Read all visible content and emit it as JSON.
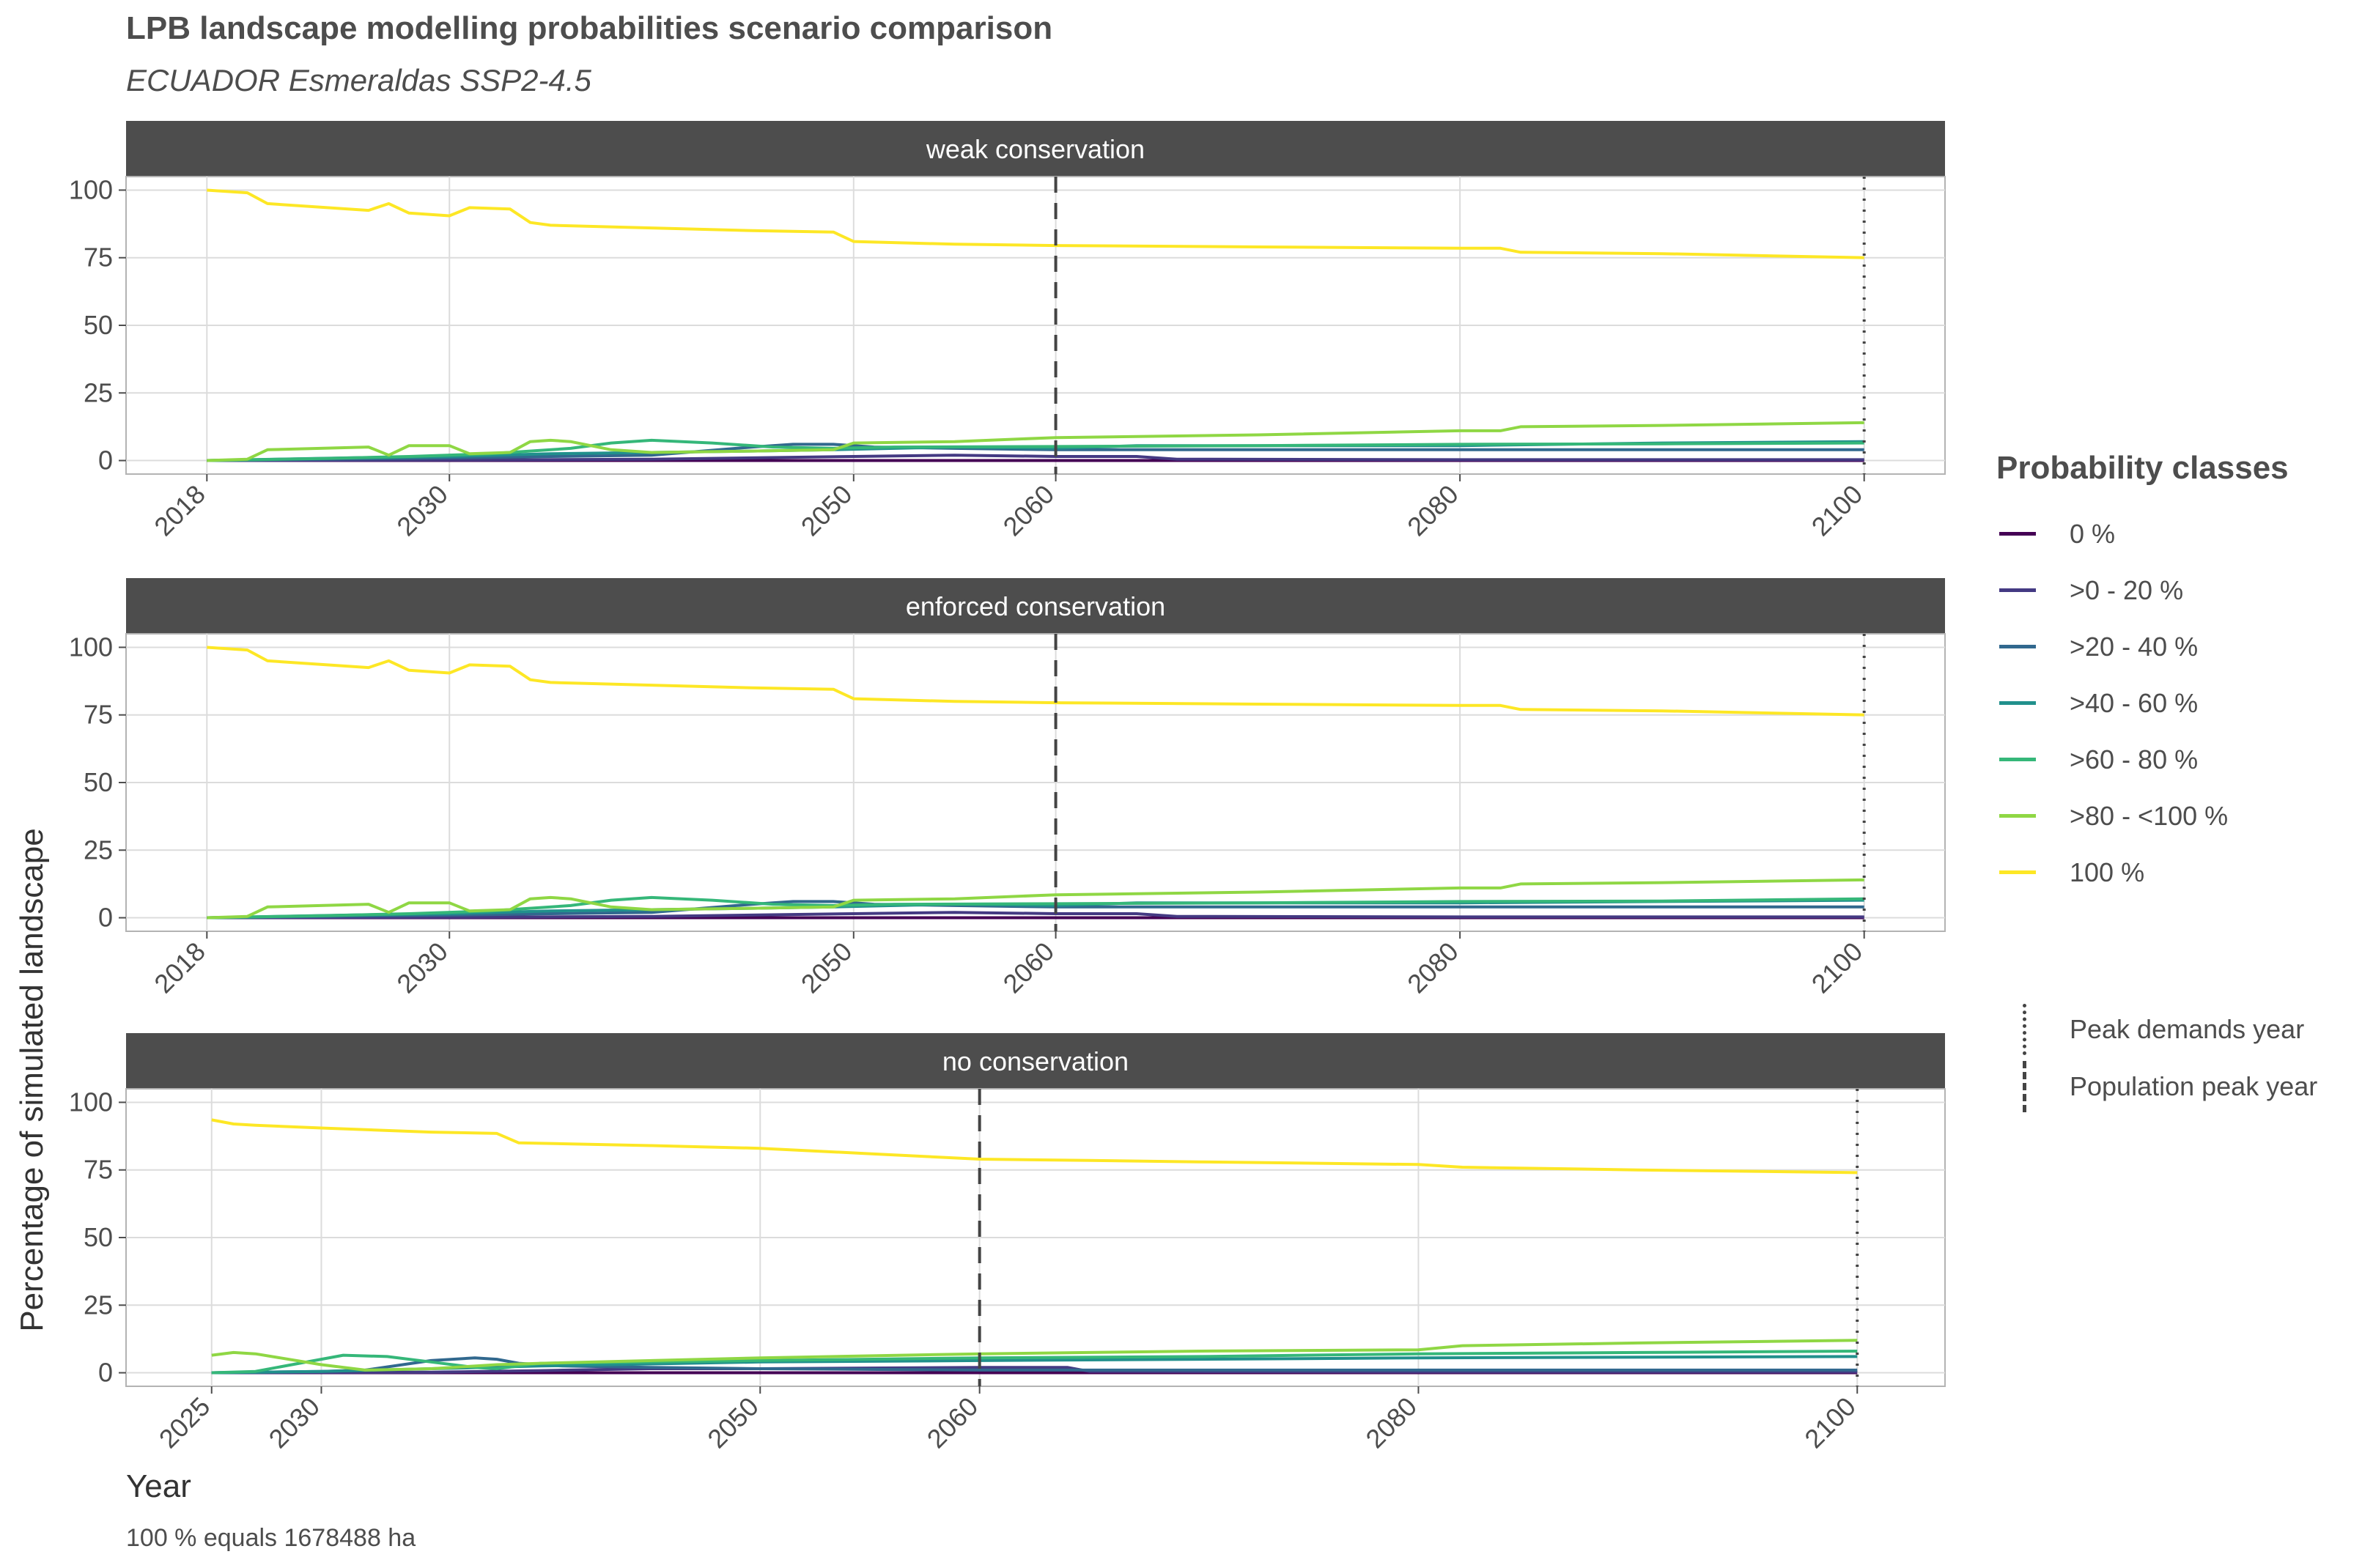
{
  "title": "LPB landscape modelling probabilities scenario comparison",
  "subtitle": "ECUADOR Esmeraldas SSP2-4.5",
  "caption": "100 % equals 1678488 ha",
  "legend": {
    "title": "Probability classes",
    "items": [
      {
        "label": "0 %",
        "color": "#440154"
      },
      {
        "label": ">0 - 20 %",
        "color": "#443A83"
      },
      {
        "label": ">20 - 40 %",
        "color": "#31688E"
      },
      {
        "label": ">40 - 60 %",
        "color": "#21908C"
      },
      {
        "label": ">60 - 80 %",
        "color": "#35B779"
      },
      {
        "label": ">80 - <100 %",
        "color": "#8FD744"
      },
      {
        "label": "100 %",
        "color": "#FDE725"
      }
    ],
    "vlines": [
      {
        "label": "Peak demands year",
        "style": "dotted"
      },
      {
        "label": "Population peak year",
        "style": "dashed"
      }
    ]
  },
  "chart_data": [
    {
      "type": "line",
      "panel_title": "weak conservation",
      "xlabel": "Year",
      "ylabel": "Percentage of simulated landscape",
      "xticks": [
        2018,
        2030,
        2050,
        2060,
        2080,
        2100
      ],
      "yticks": [
        0,
        25,
        50,
        75,
        100
      ],
      "xlim": [
        2014,
        2104
      ],
      "ylim": [
        -5,
        105
      ],
      "vlines": [
        {
          "x": 2060,
          "style": "dashed",
          "meaning": "Population peak year"
        },
        {
          "x": 2100,
          "style": "dotted",
          "meaning": "Peak demands year"
        }
      ],
      "series": [
        {
          "name": "100 %",
          "x": [
            2018,
            2020,
            2021,
            2026,
            2027,
            2028,
            2030,
            2031,
            2033,
            2034,
            2035,
            2040,
            2045,
            2049,
            2050,
            2055,
            2060,
            2070,
            2080,
            2082,
            2083,
            2090,
            2100
          ],
          "y": [
            100,
            99,
            95,
            92.5,
            95,
            91.5,
            90.5,
            93.5,
            93,
            88,
            87,
            86,
            85,
            84.5,
            81,
            80,
            79.5,
            79,
            78.5,
            78.5,
            77,
            76.5,
            75
          ]
        },
        {
          "name": ">80 - <100 %",
          "x": [
            2018,
            2020,
            2021,
            2026,
            2027,
            2028,
            2030,
            2031,
            2033,
            2034,
            2035,
            2036,
            2038,
            2040,
            2045,
            2049,
            2050,
            2055,
            2060,
            2070,
            2080,
            2082,
            2083,
            2090,
            2100
          ],
          "y": [
            0,
            0.5,
            4,
            5,
            2,
            5.5,
            5.5,
            2.5,
            3,
            7,
            7.5,
            7,
            4,
            3,
            3.5,
            4,
            6.5,
            7,
            8.5,
            9.5,
            11,
            11,
            12.5,
            13,
            14
          ]
        },
        {
          "name": ">60 - 80 %",
          "x": [
            2018,
            2024,
            2028,
            2032,
            2036,
            2038,
            2040,
            2043,
            2046,
            2049,
            2052,
            2060,
            2070,
            2080,
            2090,
            2100
          ],
          "y": [
            0,
            0.8,
            1.5,
            2.5,
            4.5,
            6.5,
            7.5,
            6.5,
            5,
            4.5,
            5,
            5.2,
            5.5,
            6,
            6.2,
            6.5
          ]
        },
        {
          "name": ">40 - 60 %",
          "x": [
            2018,
            2025,
            2030,
            2035,
            2040,
            2045,
            2049,
            2052,
            2055,
            2060,
            2064,
            2070,
            2080,
            2090,
            2100
          ],
          "y": [
            0,
            1,
            1.5,
            2.5,
            3,
            3.5,
            4,
            4.5,
            5,
            4.5,
            5.5,
            5.5,
            5.5,
            6.5,
            7
          ]
        },
        {
          "name": ">20 - 40 %",
          "x": [
            2018,
            2030,
            2035,
            2040,
            2045,
            2047,
            2049,
            2051,
            2055,
            2060,
            2064,
            2070,
            2080,
            2100
          ],
          "y": [
            0,
            1,
            1.5,
            2,
            5,
            6,
            6,
            5,
            4.5,
            4,
            4,
            4,
            4,
            4
          ]
        },
        {
          "name": ">0 - 20 %",
          "x": [
            2018,
            2030,
            2040,
            2050,
            2055,
            2060,
            2064,
            2066,
            2080,
            2100
          ],
          "y": [
            0,
            0.2,
            0.5,
            1.5,
            2,
            1.5,
            1.5,
            0.5,
            0.3,
            0.3
          ]
        },
        {
          "name": "0 %",
          "x": [
            2018,
            2050,
            2060,
            2080,
            2100
          ],
          "y": [
            0,
            0,
            0,
            0,
            0
          ]
        }
      ]
    },
    {
      "type": "line",
      "panel_title": "enforced conservation",
      "xlabel": "Year",
      "ylabel": "Percentage of simulated landscape",
      "xticks": [
        2018,
        2030,
        2050,
        2060,
        2080,
        2100
      ],
      "yticks": [
        0,
        25,
        50,
        75,
        100
      ],
      "xlim": [
        2014,
        2104
      ],
      "ylim": [
        -5,
        105
      ],
      "vlines": [
        {
          "x": 2060,
          "style": "dashed",
          "meaning": "Population peak year"
        },
        {
          "x": 2100,
          "style": "dotted",
          "meaning": "Peak demands year"
        }
      ],
      "series": [
        {
          "name": "100 %",
          "x": [
            2018,
            2020,
            2021,
            2026,
            2027,
            2028,
            2030,
            2031,
            2033,
            2034,
            2035,
            2040,
            2045,
            2049,
            2050,
            2055,
            2060,
            2070,
            2080,
            2082,
            2083,
            2090,
            2100
          ],
          "y": [
            100,
            99,
            95,
            92.5,
            95,
            91.5,
            90.5,
            93.5,
            93,
            88,
            87,
            86,
            85,
            84.5,
            81,
            80,
            79.5,
            79,
            78.5,
            78.5,
            77,
            76.5,
            75
          ]
        },
        {
          "name": ">80 - <100 %",
          "x": [
            2018,
            2020,
            2021,
            2026,
            2027,
            2028,
            2030,
            2031,
            2033,
            2034,
            2035,
            2036,
            2038,
            2040,
            2045,
            2049,
            2050,
            2055,
            2060,
            2070,
            2080,
            2082,
            2083,
            2090,
            2100
          ],
          "y": [
            0,
            0.5,
            4,
            5,
            2,
            5.5,
            5.5,
            2.5,
            3,
            7,
            7.5,
            7,
            4,
            3,
            3.5,
            4,
            6.5,
            7,
            8.5,
            9.5,
            11,
            11,
            12.5,
            13,
            14
          ]
        },
        {
          "name": ">60 - 80 %",
          "x": [
            2018,
            2024,
            2028,
            2032,
            2036,
            2038,
            2040,
            2043,
            2046,
            2049,
            2052,
            2060,
            2070,
            2080,
            2090,
            2100
          ],
          "y": [
            0,
            0.8,
            1.5,
            2.5,
            4.5,
            6.5,
            7.5,
            6.5,
            5,
            4.5,
            5,
            5.2,
            5.5,
            6,
            6.2,
            7
          ]
        },
        {
          "name": ">40 - 60 %",
          "x": [
            2018,
            2025,
            2030,
            2035,
            2040,
            2045,
            2049,
            2052,
            2055,
            2060,
            2064,
            2070,
            2080,
            2090,
            2100
          ],
          "y": [
            0,
            1,
            1.5,
            2.5,
            3,
            3.5,
            4,
            4.5,
            5,
            4.5,
            5.5,
            5.5,
            5.5,
            6,
            6.5
          ]
        },
        {
          "name": ">20 - 40 %",
          "x": [
            2018,
            2030,
            2035,
            2040,
            2045,
            2047,
            2049,
            2051,
            2055,
            2060,
            2064,
            2070,
            2080,
            2100
          ],
          "y": [
            0,
            1,
            1.5,
            2,
            5,
            6,
            6,
            5,
            4.5,
            4,
            4,
            4,
            4,
            4
          ]
        },
        {
          "name": ">0 - 20 %",
          "x": [
            2018,
            2030,
            2040,
            2050,
            2055,
            2060,
            2064,
            2066,
            2080,
            2100
          ],
          "y": [
            0,
            0.2,
            0.5,
            1.5,
            2,
            1.5,
            1.5,
            0.5,
            0.3,
            0.3
          ]
        },
        {
          "name": "0 %",
          "x": [
            2018,
            2050,
            2060,
            2080,
            2100
          ],
          "y": [
            0,
            0,
            0,
            0,
            0
          ]
        }
      ]
    },
    {
      "type": "line",
      "panel_title": "no conservation",
      "xlabel": "Year",
      "ylabel": "Percentage of simulated landscape",
      "xticks": [
        2025,
        2030,
        2050,
        2060,
        2080,
        2100
      ],
      "yticks": [
        0,
        25,
        50,
        75,
        100
      ],
      "xlim": [
        2021.1,
        2104
      ],
      "ylim": [
        -5,
        105
      ],
      "vlines": [
        {
          "x": 2060,
          "style": "dashed",
          "meaning": "Population peak year"
        },
        {
          "x": 2100,
          "style": "dotted",
          "meaning": "Peak demands year"
        }
      ],
      "series": [
        {
          "name": "100 %",
          "x": [
            2025,
            2026,
            2027,
            2030,
            2035,
            2038,
            2039,
            2045,
            2050,
            2055,
            2060,
            2065,
            2070,
            2080,
            2082,
            2090,
            2100
          ],
          "y": [
            93.5,
            92,
            91.5,
            90.5,
            89,
            88.5,
            85,
            84,
            83,
            81,
            79,
            78.5,
            78,
            77,
            76,
            75,
            74
          ]
        },
        {
          "name": ">80 - <100 %",
          "x": [
            2025,
            2026,
            2027,
            2030,
            2032,
            2035,
            2036,
            2038,
            2040,
            2050,
            2060,
            2070,
            2080,
            2082,
            2090,
            2100
          ],
          "y": [
            6.5,
            7.5,
            7,
            3,
            1,
            1.5,
            2,
            3,
            3.5,
            5.5,
            7,
            8,
            8.5,
            10,
            11,
            12
          ]
        },
        {
          "name": ">60 - 80 %",
          "x": [
            2025,
            2027,
            2029,
            2031,
            2033,
            2035,
            2037,
            2038,
            2040,
            2045,
            2050,
            2060,
            2070,
            2080,
            2090,
            2100
          ],
          "y": [
            0,
            0.5,
            3.5,
            6.5,
            6,
            4,
            2,
            1.5,
            3.5,
            4,
            4.5,
            5.5,
            6,
            7,
            7.5,
            8
          ]
        },
        {
          "name": ">40 - 60 %",
          "x": [
            2025,
            2030,
            2035,
            2040,
            2050,
            2060,
            2070,
            2080,
            2100
          ],
          "y": [
            0,
            0.5,
            1.5,
            2.5,
            4,
            4.5,
            5,
            5.5,
            6
          ]
        },
        {
          "name": ">20 - 40 %",
          "x": [
            2025,
            2030,
            2032,
            2035,
            2037,
            2038,
            2039,
            2041,
            2045,
            2050,
            2060,
            2070,
            2100
          ],
          "y": [
            0,
            0.5,
            1,
            4.5,
            5.5,
            5,
            3.5,
            2.5,
            2,
            1.5,
            1,
            1,
            1
          ]
        },
        {
          "name": ">0 - 20 %",
          "x": [
            2025,
            2035,
            2040,
            2045,
            2050,
            2060,
            2064,
            2065,
            2080,
            2100
          ],
          "y": [
            0,
            0.2,
            0.8,
            1.5,
            1.5,
            2,
            2,
            0.5,
            0.3,
            0.3
          ]
        },
        {
          "name": "0 %",
          "x": [
            2025,
            2050,
            2060,
            2080,
            2100
          ],
          "y": [
            0,
            0,
            0,
            0,
            0
          ]
        }
      ]
    }
  ]
}
